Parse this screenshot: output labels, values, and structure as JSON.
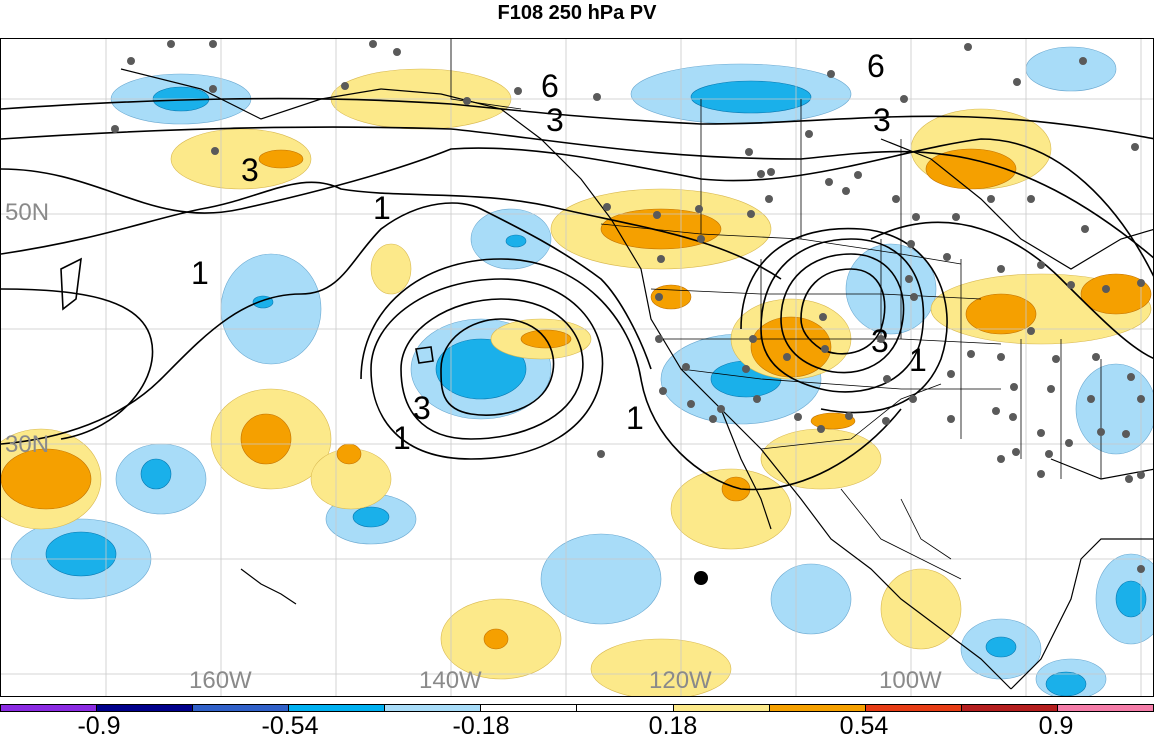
{
  "title": "F108 250 hPa PV",
  "latitude_labels": [
    "50N",
    "30N"
  ],
  "longitude_labels": [
    "160W",
    "140W",
    "120W",
    "100W"
  ],
  "contour_labels": [
    "6",
    "6",
    "3",
    "3",
    "3",
    "3",
    "3",
    "1",
    "1",
    "1",
    "1",
    "1"
  ],
  "colorbar": {
    "labels": [
      "-0.9",
      "-0.54",
      "-0.18",
      "0.18",
      "0.54",
      "0.9"
    ],
    "colors": [
      "#8a2be2",
      "#00008b",
      "#3060c8",
      "#00b0f0",
      "#a8dcf8",
      "#ffffff",
      "#ffffff",
      "#fce98a",
      "#f5a000",
      "#e63c14",
      "#b41e1e",
      "#f47ca8"
    ]
  },
  "fill_colors": {
    "light_blue": "#a8dcf8",
    "mid_blue": "#1ab0ea",
    "light_orange": "#fce98a",
    "mid_orange": "#f5a000"
  },
  "markers": "gray dots for observation sites"
}
